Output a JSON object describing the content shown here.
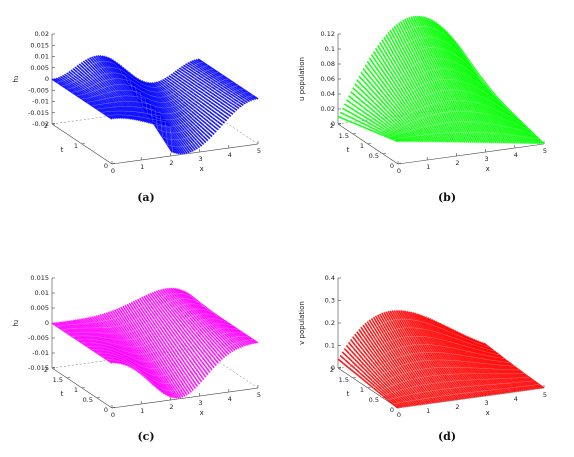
{
  "chart_data": [
    {
      "type": "surface",
      "panel_label": "(a)",
      "color": "#0000ff",
      "zlabel": "h₁",
      "xlabel": "x",
      "ylabel": "t",
      "xlim": [
        0,
        5
      ],
      "ylim": [
        0,
        2
      ],
      "zlim": [
        -0.02,
        0.02
      ],
      "x_ticks": [
        "0",
        "1",
        "2",
        "3",
        "4",
        "5"
      ],
      "y_ticks": [
        "0",
        "1",
        "2"
      ],
      "z_ticks": [
        "0.02",
        "0.015",
        "0.01",
        "0.005",
        "0",
        "-0.005",
        "-0.01",
        "-0.015",
        "-0.02"
      ],
      "surface": "h1",
      "summary": {
        "z_min": -0.02,
        "z_max": 0.01
      }
    },
    {
      "type": "surface",
      "panel_label": "(b)",
      "color": "#00ff00",
      "zlabel": "u population",
      "xlabel": "x",
      "ylabel": "t",
      "xlim": [
        0,
        5
      ],
      "ylim": [
        0,
        2
      ],
      "zlim": [
        0,
        0.12
      ],
      "x_ticks": [
        "0",
        "1",
        "2",
        "3",
        "4",
        "5"
      ],
      "y_ticks": [
        "0",
        "0.5",
        "1",
        "1.5",
        "2"
      ],
      "z_ticks": [
        "0.12",
        "0.1",
        "0.08",
        "0.06",
        "0.04",
        "0.02",
        "0"
      ],
      "surface": "u",
      "summary": {
        "z_min": 0,
        "z_max": 0.12
      }
    },
    {
      "type": "surface",
      "panel_label": "(c)",
      "color": "#ff00ff",
      "zlabel": "h₂",
      "xlabel": "x",
      "ylabel": "t",
      "xlim": [
        0,
        5
      ],
      "ylim": [
        0,
        2
      ],
      "zlim": [
        -0.015,
        0.015
      ],
      "x_ticks": [
        "0",
        "1",
        "2",
        "3",
        "4",
        "5"
      ],
      "y_ticks": [
        "0",
        "0.5",
        "1",
        "1.5",
        "2"
      ],
      "z_ticks": [
        "0.015",
        "0.01",
        "0.005",
        "0",
        "-0.005",
        "-0.01",
        "-0.015"
      ],
      "surface": "h2",
      "summary": {
        "z_min": -0.015,
        "z_max": 0.007
      }
    },
    {
      "type": "surface",
      "panel_label": "(d)",
      "color": "#ff0000",
      "zlabel": "v population",
      "xlabel": "x",
      "ylabel": "t",
      "xlim": [
        0,
        5
      ],
      "ylim": [
        0,
        2
      ],
      "zlim": [
        0,
        0.4
      ],
      "x_ticks": [
        "0",
        "1",
        "2",
        "3",
        "4",
        "5"
      ],
      "y_ticks": [
        "0",
        "0.5",
        "1",
        "1.5",
        "2"
      ],
      "z_ticks": [
        "0.4",
        "0.3",
        "0.2",
        "0.1",
        "0"
      ],
      "surface": "v",
      "summary": {
        "z_min": 0,
        "z_max": 0.38
      }
    }
  ]
}
